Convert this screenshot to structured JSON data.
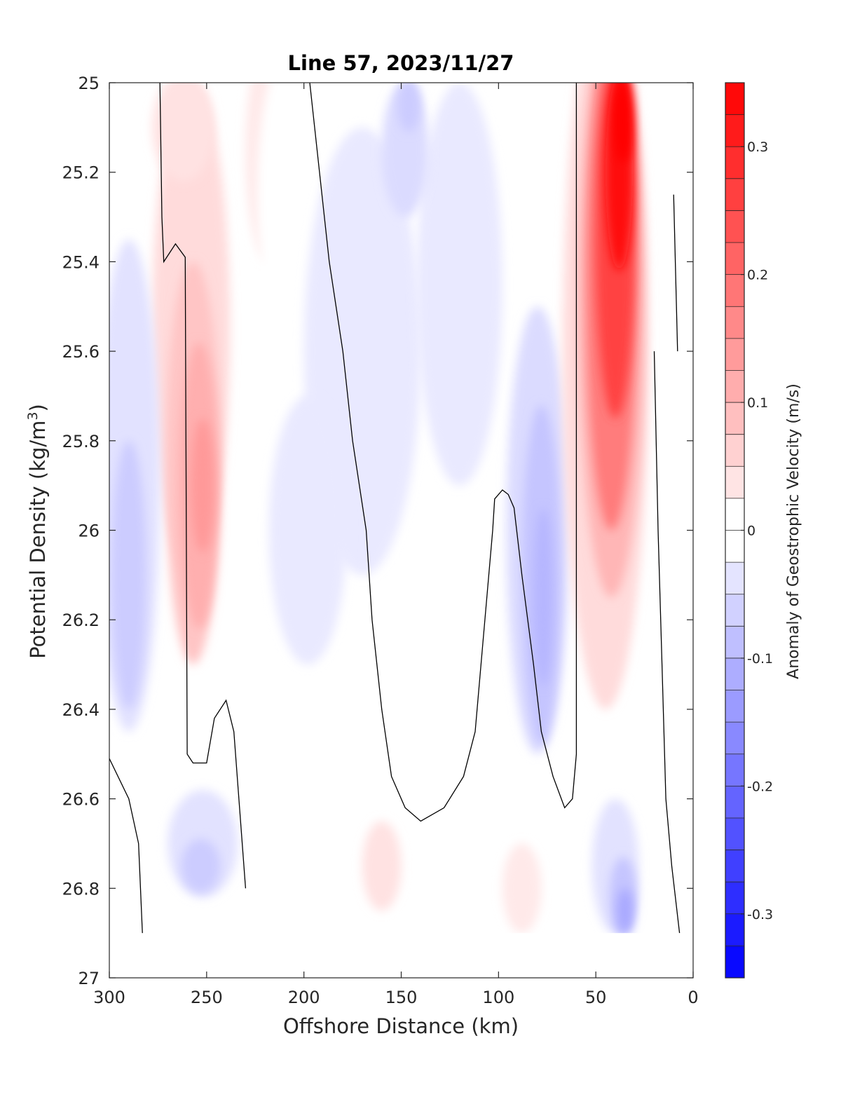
{
  "chart_data": {
    "type": "filled-contour",
    "title": "Line 57, 2023/11/27",
    "xlabel": "Offshore Distance (km)",
    "ylabel_main": "Potential Density (kg/m",
    "ylabel_sup": "3",
    "ylabel_close": ")",
    "xlim": [
      300,
      0
    ],
    "ylim": [
      25,
      27
    ],
    "y_reversed": true,
    "x_ticks": [
      300,
      250,
      200,
      150,
      100,
      50,
      0
    ],
    "y_ticks": [
      "25",
      "25.2",
      "25.4",
      "25.6",
      "25.8",
      "26",
      "26.2",
      "26.4",
      "26.6",
      "26.8",
      "27"
    ],
    "y_tick_values": [
      25,
      25.2,
      25.4,
      25.6,
      25.8,
      26,
      26.2,
      26.4,
      26.6,
      26.8,
      27
    ],
    "colorbar": {
      "label": "Anomaly of Geostrophic Velocity (m/s)",
      "range": [
        -0.35,
        0.35
      ],
      "step": 0.025,
      "colormap": "blue-white-red",
      "ticks": [
        "0.3",
        "0.2",
        "0.1",
        "0",
        "-0.1",
        "-0.2",
        "-0.3"
      ],
      "tick_values": [
        0.3,
        0.2,
        0.1,
        0,
        -0.1,
        -0.2,
        -0.3
      ]
    },
    "data_limit": {
      "max_density_most_stations": 26.9
    },
    "features": [
      {
        "kind": "positive",
        "name": "jet near 40 km",
        "x": 40,
        "y": 25.2,
        "peak": 0.35
      },
      {
        "kind": "positive",
        "name": "core near 255 km",
        "x": 255,
        "y": 25.9,
        "peak": 0.15
      },
      {
        "kind": "negative",
        "name": "core near 80 km",
        "x": 78,
        "y": 26.1,
        "peak": -0.13
      },
      {
        "kind": "negative",
        "name": "core near 145 km",
        "x": 145,
        "y": 25.1,
        "peak": -0.1
      },
      {
        "kind": "negative",
        "name": "core near 290 km",
        "x": 290,
        "y": 26.1,
        "peak": -0.09
      },
      {
        "kind": "negative",
        "name": "core near 35 km deep",
        "x": 35,
        "y": 26.8,
        "peak": -0.12
      },
      {
        "kind": "positive",
        "name": "weak core near 155 km deep",
        "x": 155,
        "y": 26.6,
        "peak": 0.05
      }
    ]
  },
  "colors": {
    "positive_max": "#ff0000",
    "negative_max": "#0000ff",
    "zero": "#ffffff",
    "contour": "#000000"
  }
}
